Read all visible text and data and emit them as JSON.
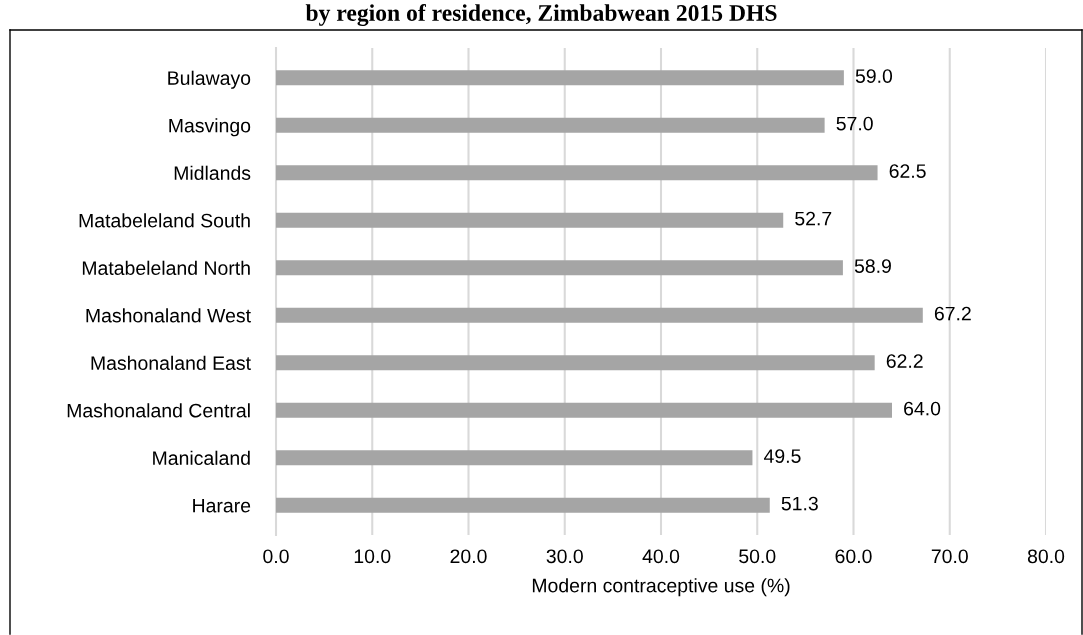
{
  "chart_data": {
    "type": "bar",
    "orientation": "horizontal",
    "title": "by region of residence, Zimbabwean 2015 DHS",
    "xlabel": "Modern contraceptive use (%)",
    "categories": [
      "Bulawayo",
      "Masvingo",
      "Midlands",
      "Matabeleland South",
      "Matabeleland North",
      "Mashonaland West",
      "Mashonaland East",
      "Mashonaland Central",
      "Manicaland",
      "Harare"
    ],
    "values": [
      59.0,
      57.0,
      62.5,
      52.7,
      58.9,
      67.2,
      62.2,
      64.0,
      49.5,
      51.3
    ],
    "value_labels": [
      "59.0",
      "57.0",
      "62.5",
      "52.7",
      "58.9",
      "67.2",
      "62.2",
      "64.0",
      "49.5",
      "51.3"
    ],
    "color": "#a5a5a5",
    "xlim": [
      0,
      80
    ],
    "xticks": [
      {
        "value": 0,
        "label": "0.0"
      },
      {
        "value": 10,
        "label": "10.0"
      },
      {
        "value": 20,
        "label": "20.0"
      },
      {
        "value": 30,
        "label": "30.0"
      },
      {
        "value": 40,
        "label": "40.0"
      },
      {
        "value": 50,
        "label": "50.0"
      },
      {
        "value": 60,
        "label": "60.0"
      },
      {
        "value": 70,
        "label": "70.0"
      },
      {
        "value": 80,
        "label": "80.0"
      }
    ],
    "grid": "x",
    "legend": false
  }
}
